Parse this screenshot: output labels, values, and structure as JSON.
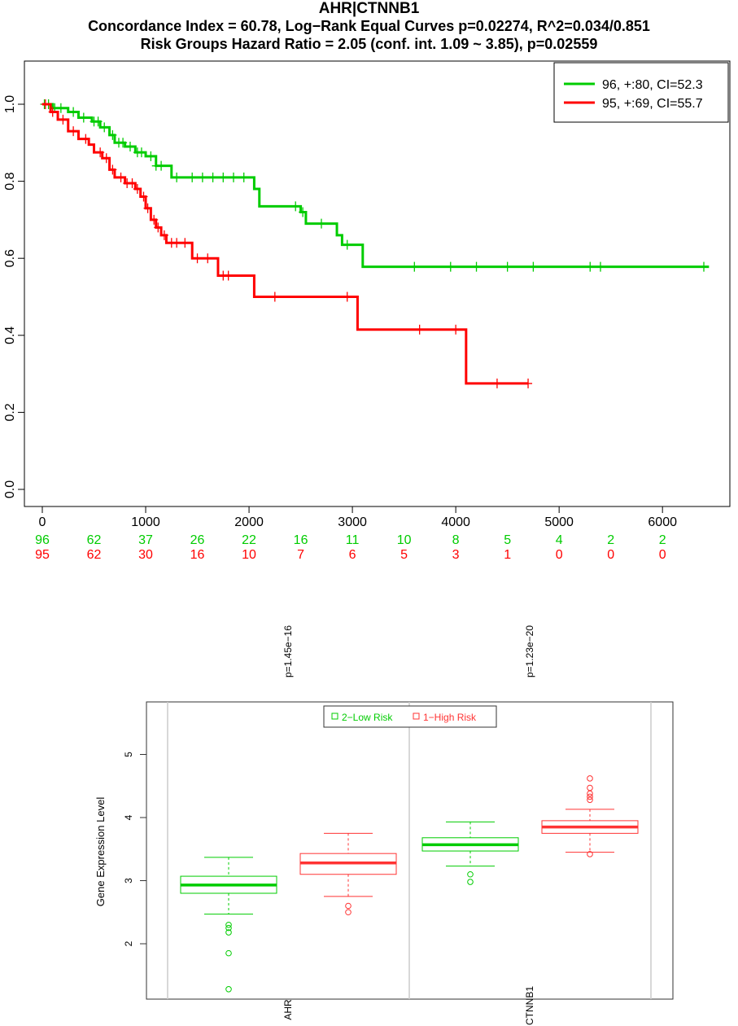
{
  "chart_data": [
    {
      "type": "line",
      "chart_kind": "kaplan-meier",
      "title": "AHR|CTNNB1",
      "subtitle_1": "Concordance Index = 60.78, Log−Rank Equal Curves p=0.02274, R^2=0.034/0.851",
      "subtitle_2": "Risk Groups Hazard Ratio = 2.05 (conf. int. 1.09 ~ 3.85), p=0.02559",
      "xlim": [
        0,
        6400
      ],
      "ylim": [
        0,
        1.0
      ],
      "x_ticks": [
        0,
        1000,
        2000,
        3000,
        4000,
        5000,
        6000
      ],
      "y_ticks": [
        0.0,
        0.2,
        0.4,
        0.6,
        0.8,
        1.0
      ],
      "x_ticks_labels": [
        "0",
        "1000",
        "2000",
        "3000",
        "4000",
        "5000",
        "6000"
      ],
      "y_ticks_labels": [
        "0.0",
        "0.2",
        "0.4",
        "0.6",
        "0.8",
        "1.0"
      ],
      "legend_position": "top-right",
      "series": [
        {
          "name": "96, +:80, CI=52.3",
          "color": "#00cc00",
          "steps": [
            [
              0,
              1.0
            ],
            [
              100,
              0.99
            ],
            [
              250,
              0.98
            ],
            [
              350,
              0.965
            ],
            [
              480,
              0.955
            ],
            [
              560,
              0.94
            ],
            [
              650,
              0.92
            ],
            [
              700,
              0.9
            ],
            [
              800,
              0.89
            ],
            [
              900,
              0.875
            ],
            [
              1000,
              0.865
            ],
            [
              1100,
              0.84
            ],
            [
              1250,
              0.81
            ],
            [
              2050,
              0.78
            ],
            [
              2100,
              0.735
            ],
            [
              2500,
              0.72
            ],
            [
              2550,
              0.69
            ],
            [
              2850,
              0.66
            ],
            [
              2900,
              0.635
            ],
            [
              3100,
              0.578
            ],
            [
              6450,
              0.578
            ]
          ],
          "censor_x": [
            20,
            60,
            120,
            180,
            300,
            400,
            500,
            540,
            600,
            680,
            740,
            780,
            850,
            920,
            960,
            1050,
            1100,
            1150,
            1300,
            1450,
            1550,
            1650,
            1750,
            1850,
            1950,
            2450,
            2520,
            2700,
            2950,
            3600,
            3950,
            4200,
            4500,
            4750,
            5300,
            5400,
            6400
          ]
        },
        {
          "name": "95, +:69, CI=55.7",
          "color": "#ff0000",
          "steps": [
            [
              0,
              1.0
            ],
            [
              80,
              0.98
            ],
            [
              150,
              0.96
            ],
            [
              250,
              0.93
            ],
            [
              350,
              0.91
            ],
            [
              450,
              0.895
            ],
            [
              500,
              0.875
            ],
            [
              580,
              0.86
            ],
            [
              650,
              0.83
            ],
            [
              700,
              0.81
            ],
            [
              800,
              0.795
            ],
            [
              900,
              0.78
            ],
            [
              950,
              0.76
            ],
            [
              1000,
              0.73
            ],
            [
              1050,
              0.7
            ],
            [
              1100,
              0.68
            ],
            [
              1150,
              0.66
            ],
            [
              1200,
              0.64
            ],
            [
              1450,
              0.6
            ],
            [
              1700,
              0.555
            ],
            [
              2050,
              0.5
            ],
            [
              3050,
              0.415
            ],
            [
              4100,
              0.275
            ],
            [
              4700,
              0.275
            ]
          ],
          "censor_x": [
            30,
            100,
            200,
            300,
            420,
            560,
            620,
            680,
            760,
            820,
            870,
            920,
            980,
            1020,
            1080,
            1120,
            1180,
            1250,
            1300,
            1380,
            1500,
            1600,
            1750,
            1800,
            2250,
            2950,
            3650,
            4000,
            4400,
            4700
          ]
        }
      ],
      "risk_table": {
        "x": [
          0,
          500,
          1000,
          1500,
          2000,
          2500,
          3000,
          3500,
          4000,
          4500,
          5000,
          5500,
          6000
        ],
        "low_risk": [
          "96",
          "62",
          "37",
          "26",
          "22",
          "16",
          "11",
          "10",
          "8",
          "5",
          "4",
          "2",
          "2"
        ],
        "high_risk": [
          "95",
          "62",
          "30",
          "16",
          "10",
          "7",
          "6",
          "5",
          "3",
          "1",
          "0",
          "0",
          "0"
        ]
      }
    },
    {
      "type": "box",
      "ylabel": "Gene Expression Level",
      "ylim": [
        1.15,
        5.25
      ],
      "y_ticks": [
        2,
        3,
        4,
        5
      ],
      "y_ticks_labels": [
        "2",
        "3",
        "4",
        "5"
      ],
      "legend_position": "top",
      "legend": [
        {
          "label": "2−Low Risk",
          "color": "#00cc00"
        },
        {
          "label": "1−High Risk",
          "color": "#ff3333"
        }
      ],
      "genes": [
        {
          "name": "AHR",
          "p_value": "p=1.45e−16",
          "boxes": [
            {
              "group": "2−Low Risk",
              "color": "#00cc00",
              "whisker_low": 2.47,
              "q1": 2.8,
              "median": 2.93,
              "q3": 3.07,
              "whisker_high": 3.37,
              "outliers": [
                2.3,
                2.25,
                2.18,
                1.85,
                1.28
              ]
            },
            {
              "group": "1−High Risk",
              "color": "#ff3333",
              "whisker_low": 2.75,
              "q1": 3.1,
              "median": 3.28,
              "q3": 3.43,
              "whisker_high": 3.75,
              "outliers": [
                2.6,
                2.5
              ]
            }
          ]
        },
        {
          "name": "CTNNB1",
          "p_value": "p=1.23e−20",
          "boxes": [
            {
              "group": "2−Low Risk",
              "color": "#00cc00",
              "whisker_low": 3.23,
              "q1": 3.47,
              "median": 3.57,
              "q3": 3.68,
              "whisker_high": 3.93,
              "outliers": [
                3.1,
                2.98
              ]
            },
            {
              "group": "1−High Risk",
              "color": "#ff3333",
              "whisker_low": 3.45,
              "q1": 3.75,
              "median": 3.85,
              "q3": 3.95,
              "whisker_high": 4.13,
              "outliers": [
                3.42,
                4.28,
                4.33,
                4.38,
                4.47,
                4.62
              ]
            }
          ]
        }
      ]
    }
  ]
}
